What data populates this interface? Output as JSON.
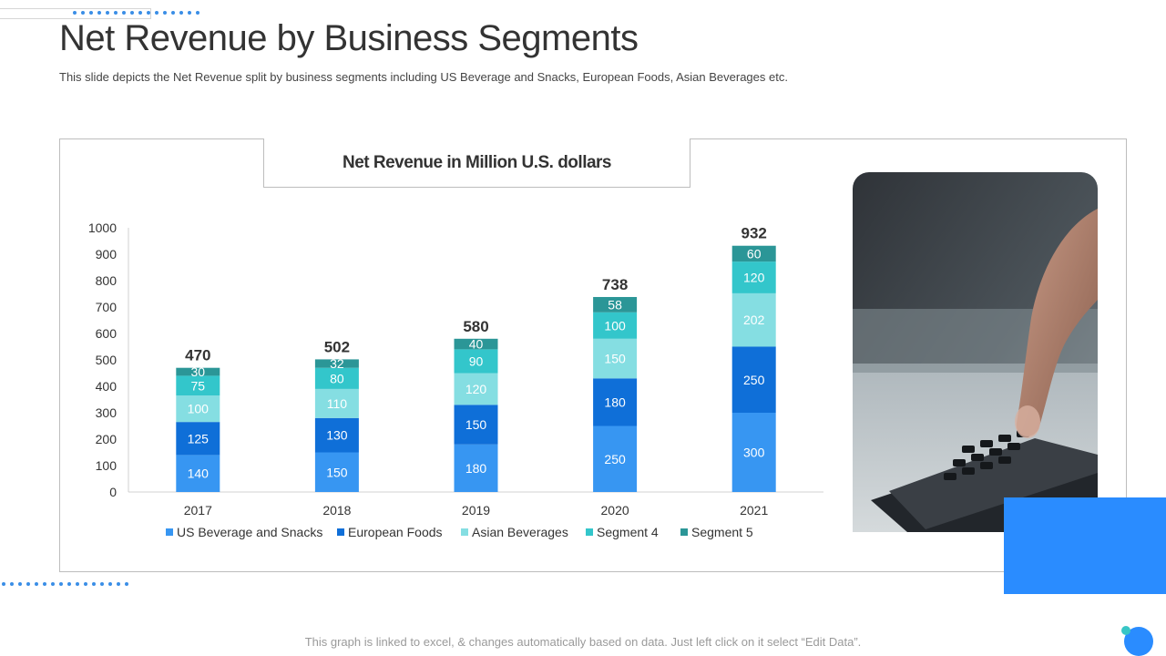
{
  "slide": {
    "title": "Net Revenue by Business Segments",
    "subtitle": "This slide depicts the Net Revenue split by business segments including US Beverage and Snacks, European Foods, Asian Beverages etc.",
    "footer_note": "This graph is linked to excel, & changes automatically based on data. Just left click on it select “Edit Data”."
  },
  "colors": {
    "accent_blue": "#2a8cff",
    "dot_blue": "#3a8ee6",
    "accent_teal": "#38c6c6"
  },
  "photo": {
    "icon": "calculator-hand-photo"
  },
  "chart_data": {
    "type": "bar",
    "stacked": true,
    "title": "Net Revenue in Million U.S. dollars",
    "categories": [
      "2017",
      "2018",
      "2019",
      "2020",
      "2021"
    ],
    "series": [
      {
        "name": "US Beverage and Snacks",
        "color": "#3796f2",
        "values": [
          140,
          150,
          180,
          250,
          300
        ]
      },
      {
        "name": "European Foods",
        "color": "#0f6fd8",
        "values": [
          125,
          130,
          150,
          180,
          250
        ]
      },
      {
        "name": "Asian Beverages",
        "color": "#85dee2",
        "values": [
          100,
          110,
          120,
          150,
          202
        ]
      },
      {
        "name": "Segment 4",
        "color": "#33c6cb",
        "values": [
          75,
          80,
          90,
          100,
          120
        ]
      },
      {
        "name": "Segment 5",
        "color": "#2b9697",
        "values": [
          30,
          32,
          40,
          58,
          60
        ]
      }
    ],
    "totals": [
      470,
      502,
      580,
      738,
      932
    ],
    "ylim": [
      0,
      1000
    ],
    "yticks": [
      0,
      100,
      200,
      300,
      400,
      500,
      600,
      700,
      800,
      900,
      1000
    ],
    "grid": false,
    "legend_position": "bottom"
  }
}
